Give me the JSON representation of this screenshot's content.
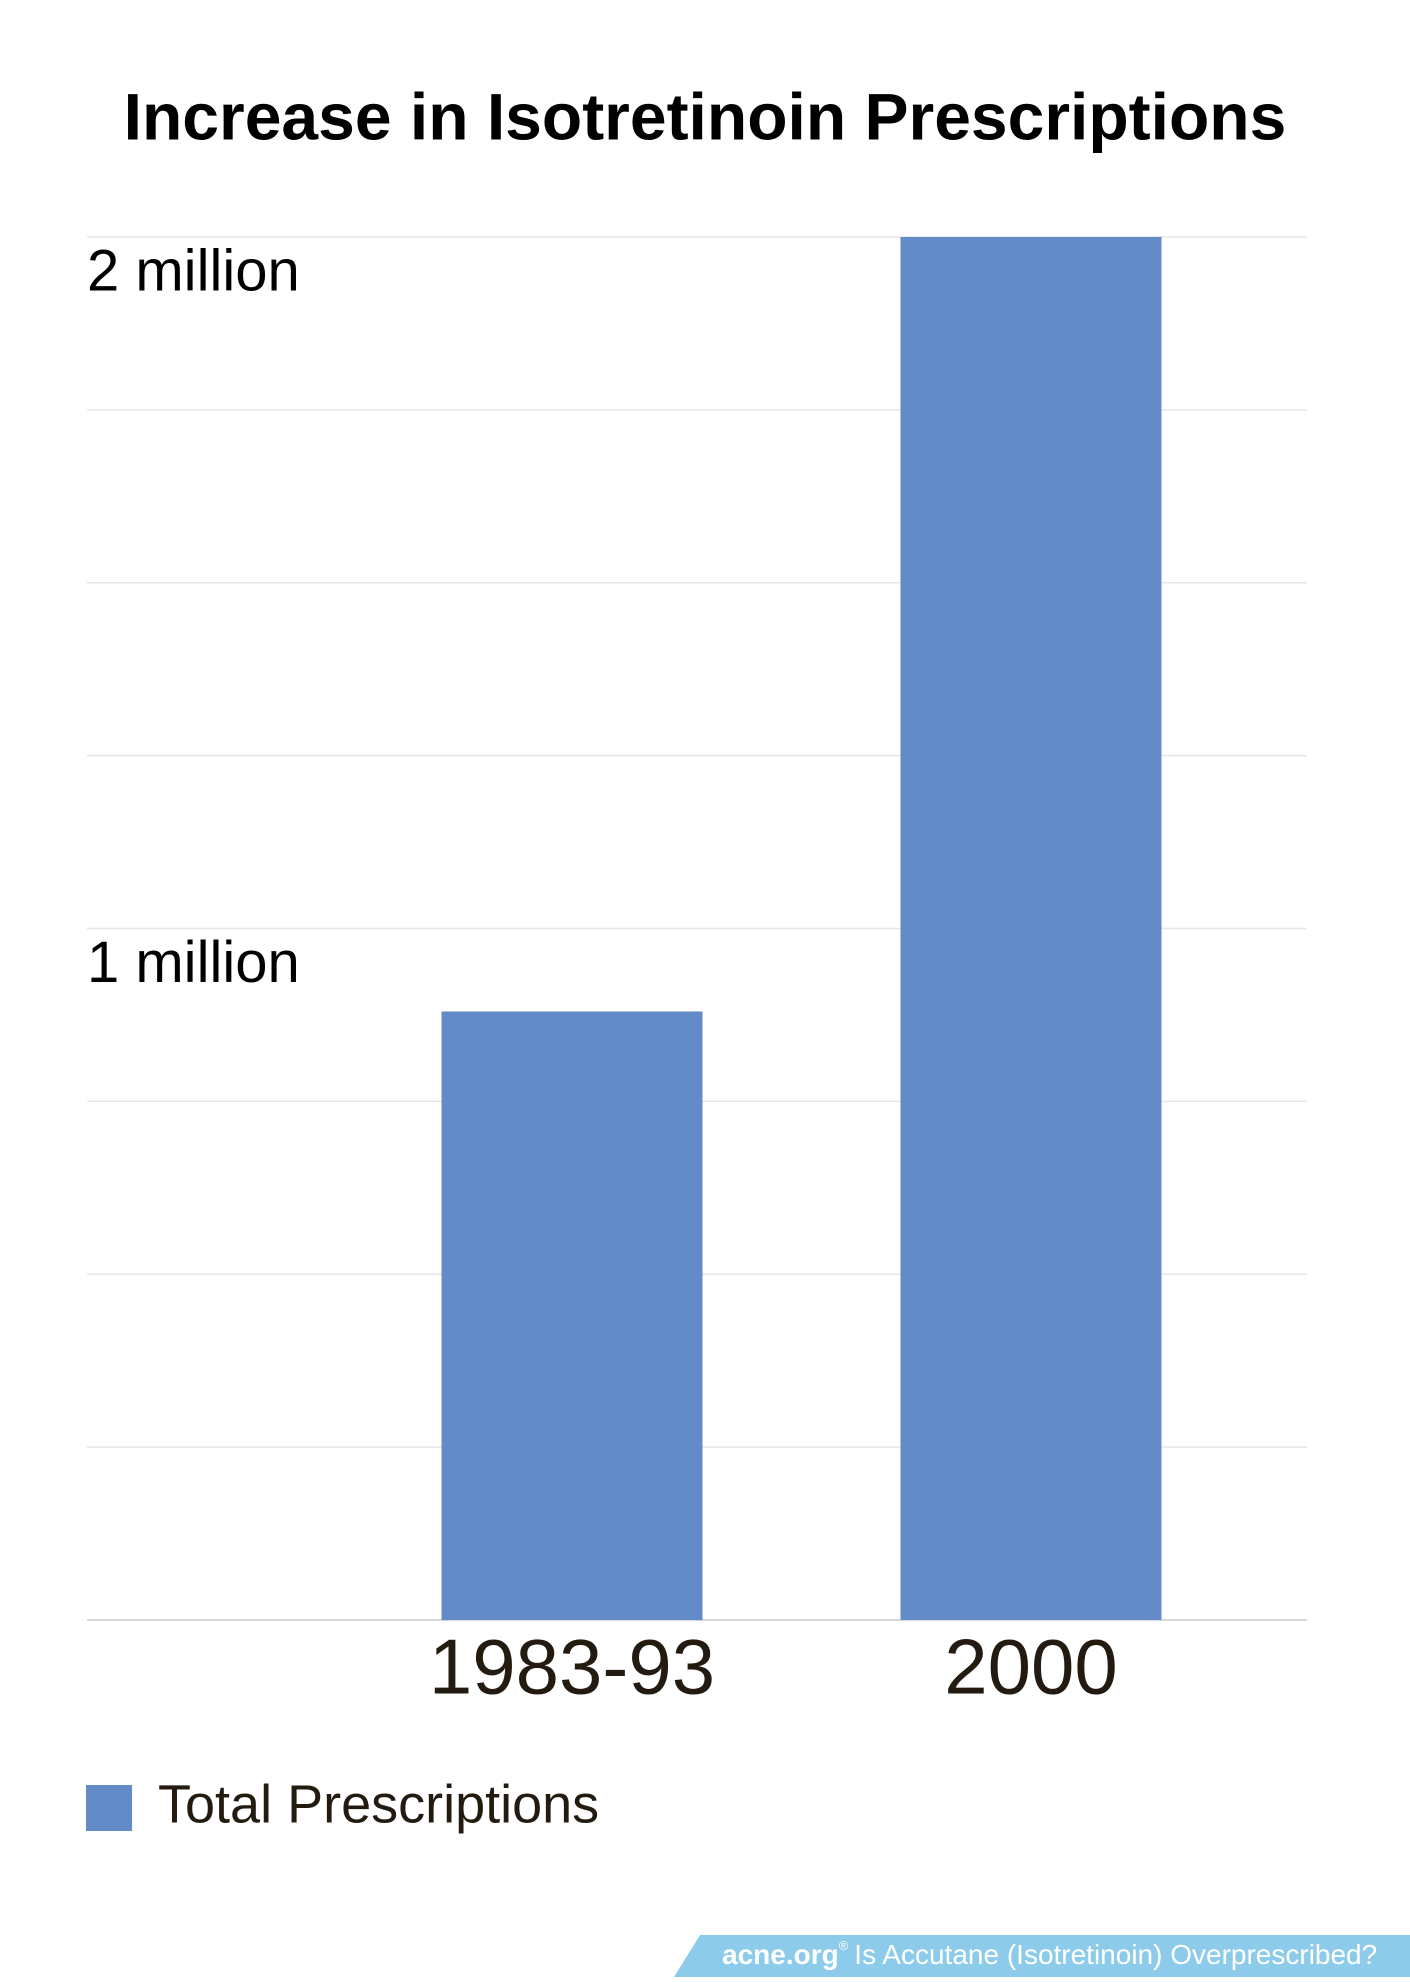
{
  "chart_data": {
    "type": "bar",
    "title": "Increase in Isotretinoin Prescriptions",
    "categories": [
      "1983-93",
      "2000"
    ],
    "series": [
      {
        "name": "Total Prescriptions",
        "color": "#628bc8",
        "values": [
          880000,
          2000000
        ]
      }
    ],
    "ylim": [
      0,
      2000000
    ],
    "yticks": [
      {
        "value": 1000000,
        "label": "1 million"
      },
      {
        "value": 2000000,
        "label": "2 million"
      }
    ],
    "minor_yticks": [
      0,
      250000,
      500000,
      750000,
      1250000,
      1500000,
      1750000
    ],
    "grid": true,
    "legend": "bottom-left"
  },
  "footer": {
    "site": "acne.org",
    "mark": "®",
    "text": "Is Accutane (Isotretinoin) Overprescribed?"
  }
}
